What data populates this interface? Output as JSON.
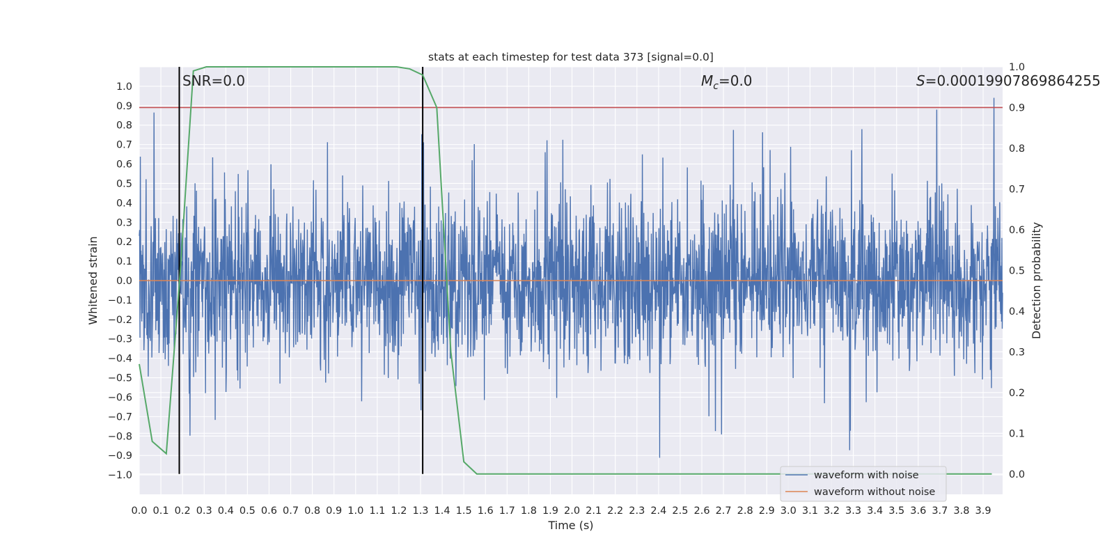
{
  "chart_data": {
    "type": "line",
    "title": "stats at each timestep for test data 373 [signal=0.0]",
    "xlabel": "Time (s)",
    "ylabel_left": "Whitened strain",
    "ylabel_right": "Detection probability",
    "xlim": [
      0.0,
      3.99
    ],
    "ylim_left": [
      -1.1,
      1.1
    ],
    "ylim_right": [
      -0.05,
      1.0
    ],
    "grid": true,
    "x_ticks": [
      0.0,
      0.1,
      0.2,
      0.3,
      0.4,
      0.5,
      0.6,
      0.7,
      0.8,
      0.9,
      1.0,
      1.1,
      1.2,
      1.3,
      1.4,
      1.5,
      1.6,
      1.7,
      1.8,
      1.9,
      2.0,
      2.1,
      2.2,
      2.3,
      2.4,
      2.5,
      2.6,
      2.7,
      2.8,
      2.9,
      3.0,
      3.1,
      3.2,
      3.3,
      3.4,
      3.5,
      3.6,
      3.7,
      3.8,
      3.9
    ],
    "y_ticks_left": [
      1.0,
      0.9,
      0.8,
      0.7,
      0.6,
      0.5,
      0.4,
      0.3,
      0.2,
      0.1,
      0.0,
      -0.1,
      -0.2,
      -0.3,
      -0.4,
      -0.5,
      -0.6,
      -0.7,
      -0.8,
      -0.9,
      -1.0
    ],
    "y_ticks_right": [
      1.0,
      0.9,
      0.8,
      0.7,
      0.6,
      0.5,
      0.4,
      0.3,
      0.2,
      0.1,
      0.0
    ],
    "x_tick_labels": [
      "0.0",
      "0.1",
      "0.2",
      "0.3",
      "0.4",
      "0.5",
      "0.6",
      "0.7",
      "0.8",
      "0.9",
      "1.0",
      "1.1",
      "1.2",
      "1.3",
      "1.4",
      "1.5",
      "1.6",
      "1.7",
      "1.8",
      "1.9",
      "2.0",
      "2.1",
      "2.2",
      "2.3",
      "2.4",
      "2.5",
      "2.6",
      "2.7",
      "2.8",
      "2.9",
      "3.0",
      "3.1",
      "3.2",
      "3.3",
      "3.4",
      "3.5",
      "3.6",
      "3.7",
      "3.8",
      "3.9"
    ],
    "y_tick_labels_left": [
      "1.0",
      "0.9",
      "0.8",
      "0.7",
      "0.6",
      "0.5",
      "0.4",
      "0.3",
      "0.2",
      "0.1",
      "0.0",
      "−0.1",
      "−0.2",
      "−0.3",
      "−0.4",
      "−0.5",
      "−0.6",
      "−0.7",
      "−0.8",
      "−0.9",
      "−1.0"
    ],
    "y_tick_labels_right": [
      "1.0",
      "0.9",
      "0.8",
      "0.7",
      "0.6",
      "0.5",
      "0.4",
      "0.3",
      "0.2",
      "0.1",
      "0.0"
    ],
    "annotations": {
      "snr": "SNR=0.0",
      "mc_symbol": "M",
      "mc_sub": "c",
      "mc_value": "=0.0",
      "s_symbol": "S",
      "s_value": "=0.00019907869864255"
    },
    "legend": {
      "placement": "lower-right",
      "entries": [
        "waveform with noise",
        "waveform without noise"
      ]
    },
    "colors": {
      "noise": "#4c72b0",
      "clean": "#dd8452",
      "probability": "#55a868",
      "threshold": "#c44e52",
      "marker": "#000000",
      "axes_bg": "#eaeaf2",
      "grid": "#ffffff"
    },
    "series": [
      {
        "name": "waveform with noise",
        "axis": "left",
        "description_kind": "noise",
        "x_range": [
          0.0,
          3.99
        ],
        "amplitude_typical": 0.45,
        "amplitude_peak": 0.98
      },
      {
        "name": "waveform without noise",
        "axis": "left",
        "x": [
          0.0,
          3.99
        ],
        "y": [
          0.0,
          0.0
        ]
      },
      {
        "axis": "right",
        "x": [
          0.0,
          0.06,
          0.125,
          0.19,
          0.25,
          0.31,
          0.375,
          0.44,
          0.5,
          0.56,
          0.625,
          0.69,
          0.75,
          0.81,
          0.875,
          0.94,
          1.0,
          1.06,
          1.125,
          1.19,
          1.25,
          1.31,
          1.375,
          1.44,
          1.5,
          1.56,
          1.625,
          1.69,
          1.75,
          2.0,
          2.5,
          3.0,
          3.5,
          3.94
        ],
        "y": [
          0.27,
          0.08,
          0.05,
          0.5,
          0.99,
          1.0,
          1.0,
          1.0,
          1.0,
          1.0,
          1.0,
          1.0,
          1.0,
          1.0,
          1.0,
          1.0,
          1.0,
          1.0,
          1.0,
          1.0,
          0.995,
          0.98,
          0.9,
          0.3,
          0.03,
          0.0,
          0.0,
          0.0,
          0.0,
          0.0,
          0.0,
          0.0,
          0.0,
          0.0
        ]
      }
    ],
    "threshold_right": 0.9,
    "markers_x": [
      0.185,
      1.31
    ]
  }
}
